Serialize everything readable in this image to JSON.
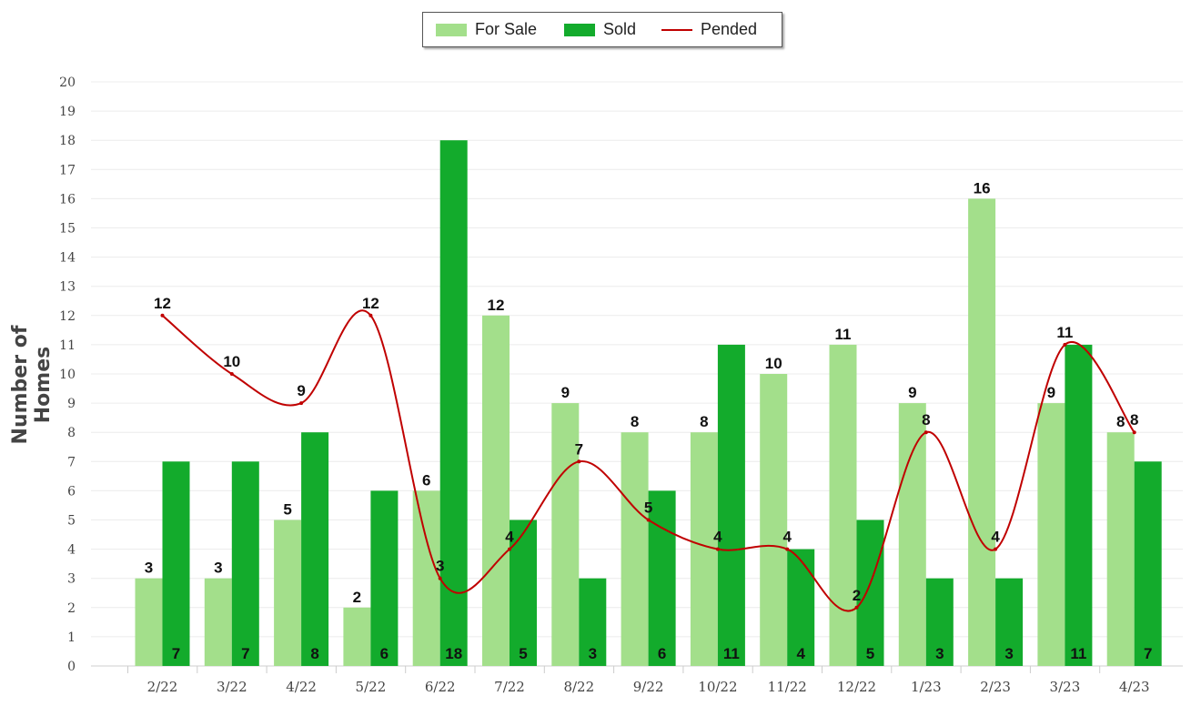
{
  "chart_data": {
    "type": "bar",
    "categories": [
      "2/22",
      "3/22",
      "4/22",
      "5/22",
      "6/22",
      "7/22",
      "8/22",
      "9/22",
      "10/22",
      "11/22",
      "12/22",
      "1/23",
      "2/23",
      "3/23",
      "4/23"
    ],
    "series": [
      {
        "name": "For Sale",
        "type": "bar",
        "color": "#a3df8b",
        "values": [
          3,
          3,
          5,
          2,
          6,
          12,
          9,
          8,
          8,
          10,
          11,
          9,
          16,
          9,
          8
        ]
      },
      {
        "name": "Sold",
        "type": "bar",
        "color": "#13ab2c",
        "values": [
          7,
          7,
          8,
          6,
          18,
          5,
          3,
          6,
          11,
          4,
          5,
          3,
          3,
          11,
          7
        ]
      },
      {
        "name": "Pended",
        "type": "line",
        "color": "#c00000",
        "values": [
          12,
          10,
          9,
          12,
          3,
          4,
          7,
          5,
          4,
          4,
          2,
          8,
          4,
          11,
          8
        ]
      }
    ],
    "ylabel": "Number of Homes",
    "ylim": [
      0,
      20
    ],
    "yticks": [
      0,
      1,
      2,
      3,
      4,
      5,
      6,
      7,
      8,
      9,
      10,
      11,
      12,
      13,
      14,
      15,
      16,
      17,
      18,
      19,
      20
    ],
    "grid": true,
    "legend": "top-center"
  }
}
